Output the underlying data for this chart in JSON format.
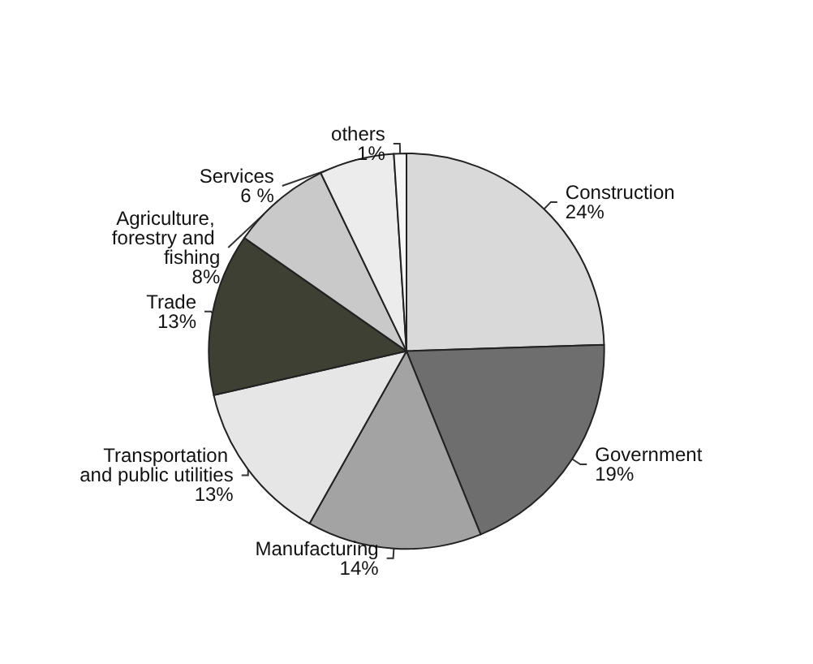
{
  "chart_data": {
    "type": "pie",
    "categories": [
      "Construction",
      "Government",
      "Manufacturing",
      "Transportation and public utilities",
      "Trade",
      "Agriculture, forestry and fishing",
      "Services",
      "others"
    ],
    "values": [
      24,
      19,
      14,
      13,
      13,
      8,
      6,
      1
    ],
    "value_labels": [
      "24%",
      "19%",
      "14%",
      "13%",
      "13%",
      "8%",
      "6 %",
      "1%"
    ],
    "colors": [
      "#d9d9d9",
      "#6e6e6e",
      "#a3a3a3",
      "#e6e6e6",
      "#3f4034",
      "#c9c9c9",
      "#ececec",
      "#f7f7f7"
    ],
    "legend": false
  }
}
